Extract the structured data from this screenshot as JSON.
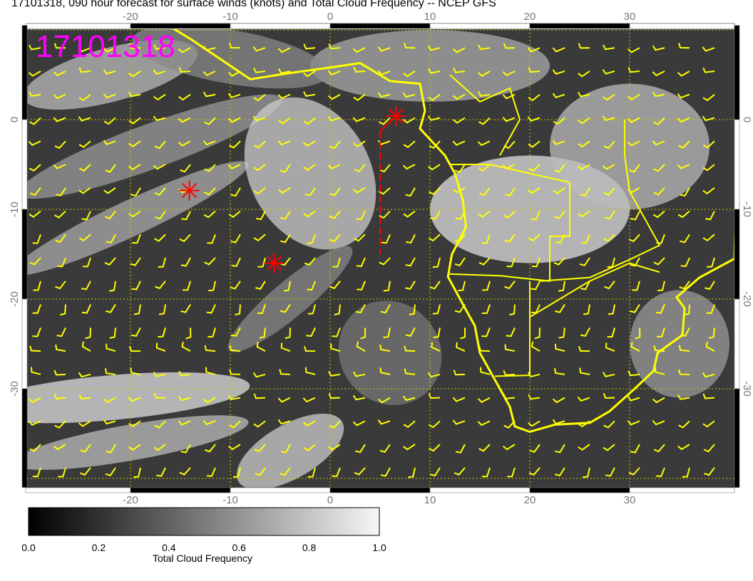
{
  "title": "17101318, 090 hour forecast for surface winds (knots) and Total Cloud Frequency -- NCEP GFS",
  "map": {
    "stamp": "17101318",
    "stamp_color": "#ff00ff",
    "lon_range": [
      -30.5,
      40.5
    ],
    "lat_range": [
      -41,
      10.5
    ],
    "lon_ticks": [
      "-20",
      "-10",
      "0",
      "10",
      "20",
      "30"
    ],
    "lat_ticks": [
      "0",
      "-10",
      "-20",
      "-30"
    ],
    "coastline_color": "#ffff00",
    "wind_barb_color": "#ffff00",
    "gridline_color": "#c8c800",
    "markers": [
      {
        "lon": -14.1,
        "lat": -7.9,
        "symbol": "asterisk",
        "color": "#ff0000"
      },
      {
        "lon": -5.6,
        "lat": -16.0,
        "symbol": "asterisk",
        "color": "#ff0000"
      },
      {
        "lon": 6.6,
        "lat": 0.4,
        "symbol": "asterisk",
        "color": "#ff0000"
      }
    ],
    "track_line": {
      "lon": 5.0,
      "lat_from": -1.3,
      "lat_to": -15.0,
      "style": "dashed",
      "color": "#ff0000"
    }
  },
  "colorbar": {
    "label": "Total Cloud Frequency",
    "ticks": [
      "0.0",
      "0.2",
      "0.4",
      "0.6",
      "0.8",
      "1.0"
    ],
    "range": [
      0,
      1
    ],
    "colormap": "grayscale black-to-white"
  }
}
